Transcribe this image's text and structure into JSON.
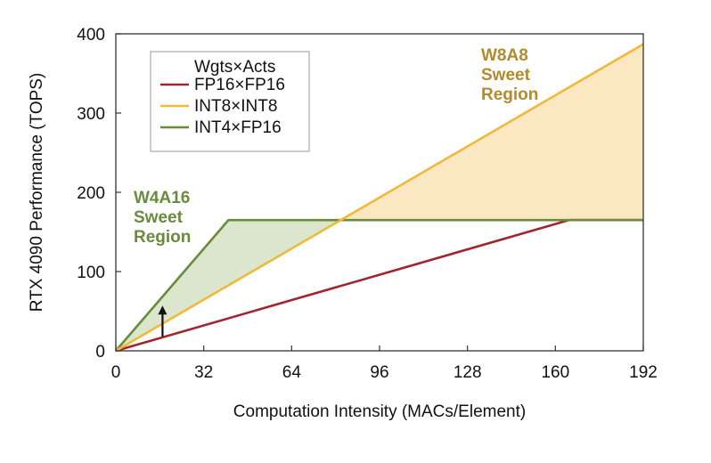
{
  "chart_data": {
    "type": "line",
    "title": "",
    "xlabel": "Computation Intensity (MACs/Element)",
    "ylabel": "RTX 4090 Performance (TOPS)",
    "xlim": [
      0,
      192
    ],
    "ylim": [
      0,
      400
    ],
    "xticks": [
      "0",
      "32",
      "64",
      "96",
      "128",
      "160",
      "192"
    ],
    "yticks": [
      "0",
      "100",
      "200",
      "300",
      "400"
    ],
    "grid": false,
    "legend": {
      "title": "Wgts×Acts",
      "position": "top-left"
    },
    "series": [
      {
        "name": "FP16×FP16",
        "color": "#a0252f",
        "points": [
          [
            0,
            0
          ],
          [
            165,
            165
          ],
          [
            192,
            165
          ]
        ]
      },
      {
        "name": "INT8×INT8",
        "color": "#f0b93a",
        "points": [
          [
            0,
            0
          ],
          [
            192,
            387
          ]
        ]
      },
      {
        "name": "INT4×FP16",
        "color": "#6a8a3e",
        "points": [
          [
            0,
            0
          ],
          [
            41,
            165
          ],
          [
            192,
            165
          ]
        ]
      }
    ],
    "shaded_regions": [
      {
        "label": [
          "W4A16",
          "Sweet",
          "Region"
        ],
        "color": "#6a8a3e",
        "fill": "#d5e2c4",
        "polygon": [
          [
            0,
            0
          ],
          [
            41,
            165
          ],
          [
            82,
            165
          ]
        ]
      },
      {
        "label": [
          "W8A8",
          "Sweet",
          "Region"
        ],
        "color": "#b48a2c",
        "fill": "#fbe3b8",
        "polygon": [
          [
            82,
            165
          ],
          [
            192,
            387
          ],
          [
            192,
            165
          ]
        ]
      }
    ],
    "annotations": [
      {
        "type": "arrow",
        "from": [
          17,
          18
        ],
        "to": [
          17,
          57
        ]
      }
    ]
  }
}
